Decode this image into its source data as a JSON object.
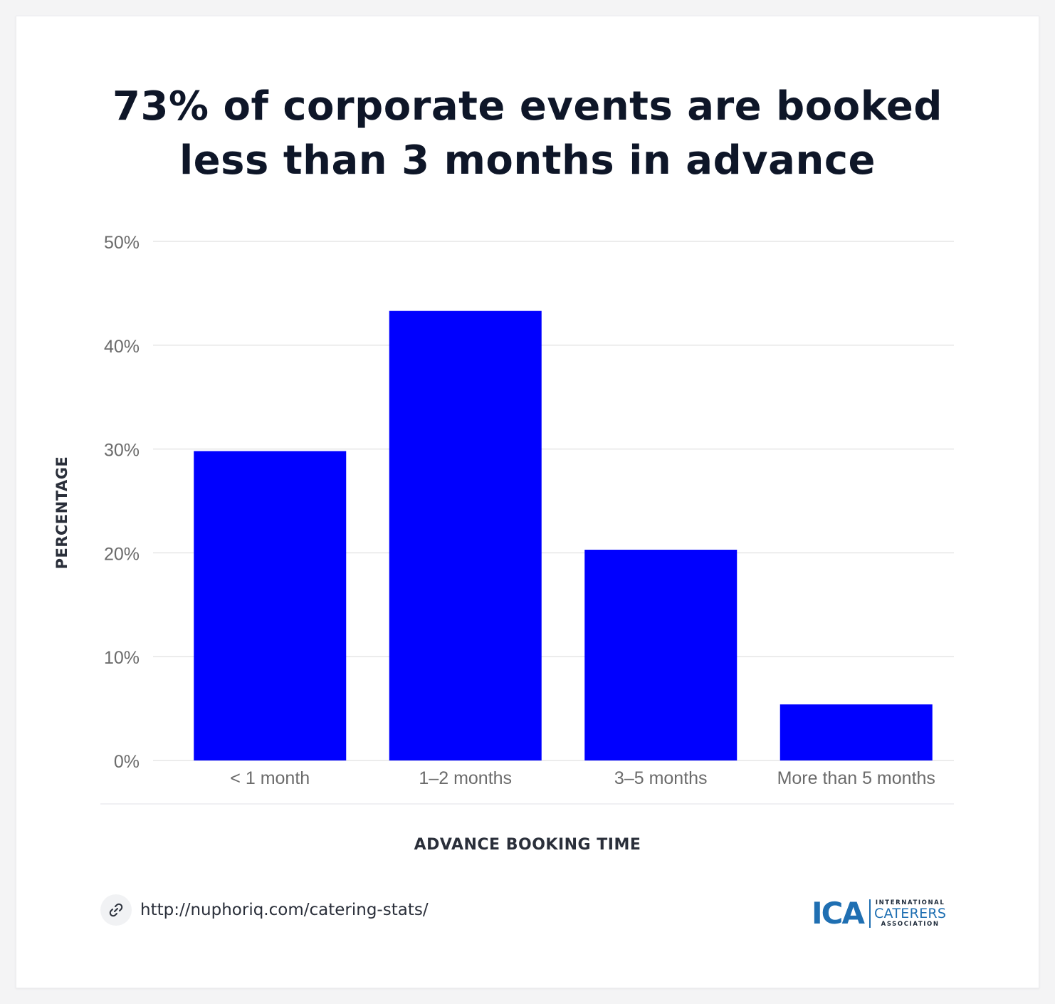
{
  "title_lines": [
    "73% of corporate events are booked",
    "less than 3 months in advance"
  ],
  "source": {
    "url": "http://nuphoriq.com/catering-stats/",
    "icon": "link-icon"
  },
  "logo": {
    "mark": "ICA",
    "top": "INTERNATIONAL",
    "middle": "CATERERS",
    "bottom": "ASSOCIATION"
  },
  "colors": {
    "bar": "#0000ff",
    "title": "#0e1628",
    "grid": "#e6e6e6",
    "tick": "#6b6b6b",
    "logo": "#1f6fb2"
  },
  "chart_data": {
    "type": "bar",
    "title": "73% of corporate events are booked less than 3 months in advance",
    "xlabel": "ADVANCE BOOKING TIME",
    "ylabel": "PERCENTAGE",
    "categories": [
      "< 1 month",
      "1–2 months",
      "3–5 months",
      "More than 5 months"
    ],
    "values": [
      29.8,
      43.3,
      20.3,
      5.4
    ],
    "ylim": [
      0,
      50
    ],
    "yticks": [
      0,
      10,
      20,
      30,
      40,
      50
    ],
    "ytick_labels": [
      "0%",
      "10%",
      "20%",
      "30%",
      "40%",
      "50%"
    ],
    "grid": true,
    "legend": "none"
  }
}
